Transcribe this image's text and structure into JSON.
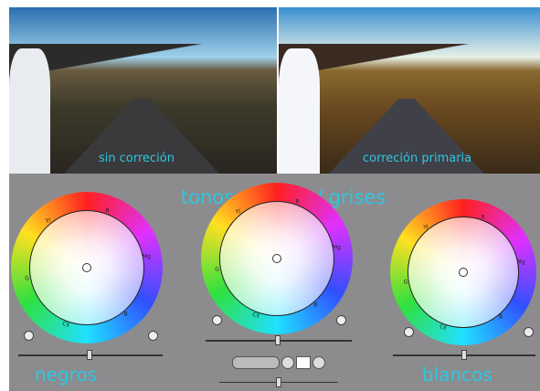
{
  "photos": {
    "before": "sin correción",
    "after": "correción primaria"
  },
  "panel": {
    "title": "tonos medios / grises",
    "left": "negros",
    "right": "blancos"
  },
  "wheel_letters": [
    "R",
    "Mg",
    "B",
    "Cy",
    "G",
    "Yl"
  ]
}
